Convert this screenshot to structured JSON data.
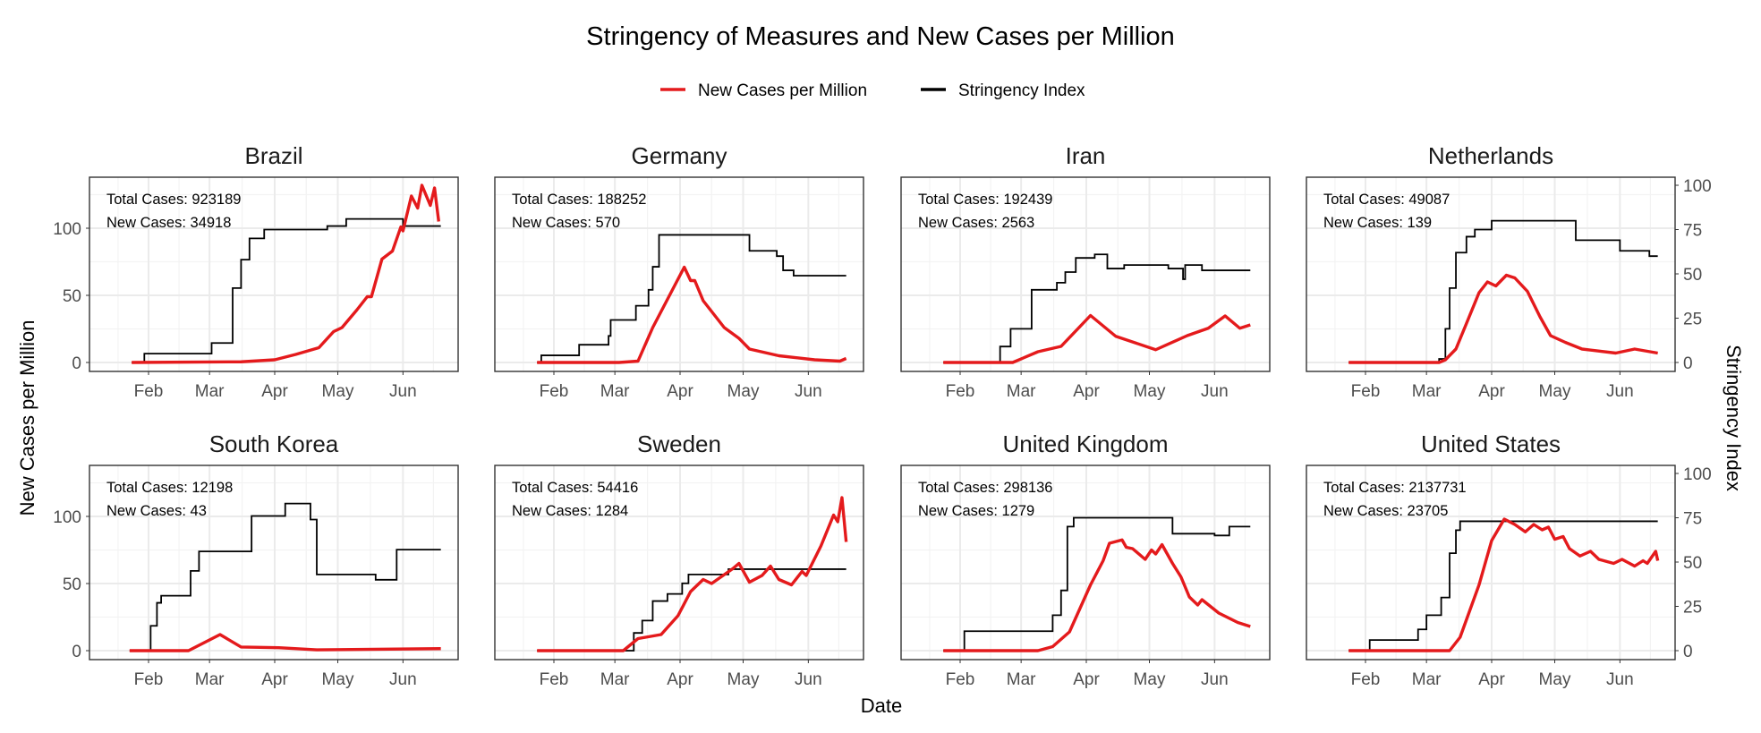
{
  "chart_data": {
    "type": "line",
    "title": "Stringency of Measures and New Cases per Million",
    "xlabel": "Date",
    "ylabel": "New Cases per Million",
    "y2label": "Stringency Index",
    "legend": {
      "position": "top",
      "entries": [
        {
          "name": "New Cases per Million",
          "color": "#e41a1c"
        },
        {
          "name": "Stringency Index",
          "color": "#000000"
        }
      ]
    },
    "x_ticks": [
      {
        "date": "02-01",
        "label": "Feb"
      },
      {
        "date": "03-01",
        "label": "Mar"
      },
      {
        "date": "04-01",
        "label": "Apr"
      },
      {
        "date": "05-01",
        "label": "May"
      },
      {
        "date": "06-01",
        "label": "Jun"
      }
    ],
    "y_ticks": [
      0,
      50,
      100
    ],
    "y2_ticks": [
      0,
      25,
      50,
      75,
      100
    ],
    "ylim": [
      -6.7,
      138
    ],
    "y2lim": [
      -5,
      104.5
    ],
    "xlim": [
      "01-05",
      "06-26"
    ],
    "grid": true,
    "total_prefix": "Total Cases: ",
    "new_prefix": "New Cases: ",
    "panels": [
      {
        "country": "Brazil",
        "total_cases": "923189",
        "new_cases": "34918",
        "stringency": [
          [
            "01-24",
            0
          ],
          [
            "01-30",
            5
          ],
          [
            "03-02",
            11
          ],
          [
            "03-12",
            42
          ],
          [
            "03-16",
            58
          ],
          [
            "03-20",
            70
          ],
          [
            "03-27",
            75
          ],
          [
            "04-26",
            77
          ],
          [
            "05-05",
            81
          ],
          [
            "06-01",
            77
          ],
          [
            "06-19",
            77
          ]
        ],
        "cases": [
          [
            "01-24",
            0
          ],
          [
            "03-16",
            0.5
          ],
          [
            "04-01",
            2
          ],
          [
            "04-11",
            6
          ],
          [
            "04-22",
            11
          ],
          [
            "04-29",
            23
          ],
          [
            "05-03",
            26
          ],
          [
            "05-10",
            39
          ],
          [
            "05-15",
            49
          ],
          [
            "05-17",
            49
          ],
          [
            "05-22",
            77
          ],
          [
            "05-27",
            83
          ],
          [
            "05-31",
            101
          ],
          [
            "06-01",
            98
          ],
          [
            "06-05",
            124
          ],
          [
            "06-08",
            115
          ],
          [
            "06-10",
            132
          ],
          [
            "06-14",
            117
          ],
          [
            "06-16",
            130
          ],
          [
            "06-18",
            105
          ]
        ]
      },
      {
        "country": "Germany",
        "total_cases": "188252",
        "new_cases": "570",
        "stringency": [
          [
            "01-24",
            0
          ],
          [
            "01-26",
            4
          ],
          [
            "02-13",
            10
          ],
          [
            "02-27",
            15
          ],
          [
            "02-28",
            24
          ],
          [
            "03-11",
            32
          ],
          [
            "03-17",
            41
          ],
          [
            "03-19",
            54
          ],
          [
            "03-22",
            72
          ],
          [
            "05-04",
            63
          ],
          [
            "05-17",
            60
          ],
          [
            "05-20",
            52
          ],
          [
            "05-25",
            49
          ],
          [
            "06-19",
            49
          ]
        ],
        "cases": [
          [
            "01-24",
            0
          ],
          [
            "03-03",
            0
          ],
          [
            "03-12",
            1
          ],
          [
            "03-19",
            26
          ],
          [
            "03-28",
            53
          ],
          [
            "04-03",
            71
          ],
          [
            "04-06",
            61
          ],
          [
            "04-08",
            61
          ],
          [
            "04-12",
            46
          ],
          [
            "04-22",
            26
          ],
          [
            "04-29",
            18
          ],
          [
            "05-04",
            10
          ],
          [
            "05-18",
            5
          ],
          [
            "06-04",
            2
          ],
          [
            "06-16",
            1
          ],
          [
            "06-19",
            3
          ]
        ]
      },
      {
        "country": "Iran",
        "total_cases": "192439",
        "new_cases": "2563",
        "stringency": [
          [
            "01-24",
            0
          ],
          [
            "02-20",
            9
          ],
          [
            "02-25",
            19
          ],
          [
            "03-06",
            41
          ],
          [
            "03-18",
            45
          ],
          [
            "03-22",
            51
          ],
          [
            "03-27",
            59
          ],
          [
            "04-05",
            61
          ],
          [
            "04-11",
            53
          ],
          [
            "04-19",
            55
          ],
          [
            "05-10",
            53
          ],
          [
            "05-17",
            47
          ],
          [
            "05-18",
            55
          ],
          [
            "05-26",
            52
          ],
          [
            "06-18",
            52
          ]
        ],
        "cases": [
          [
            "01-24",
            0
          ],
          [
            "02-26",
            0
          ],
          [
            "03-09",
            8
          ],
          [
            "03-20",
            12
          ],
          [
            "04-03",
            35
          ],
          [
            "04-15",
            19.5
          ],
          [
            "05-04",
            9.5
          ],
          [
            "05-19",
            20
          ],
          [
            "05-29",
            25.5
          ],
          [
            "06-06",
            34.7
          ],
          [
            "06-13",
            25.5
          ],
          [
            "06-18",
            28
          ]
        ]
      },
      {
        "country": "Netherlands",
        "total_cases": "49087",
        "new_cases": "139",
        "stringency": [
          [
            "01-24",
            0
          ],
          [
            "03-07",
            2
          ],
          [
            "03-10",
            19
          ],
          [
            "03-12",
            42
          ],
          [
            "03-15",
            62
          ],
          [
            "03-20",
            71
          ],
          [
            "03-24",
            75
          ],
          [
            "04-01",
            80
          ],
          [
            "05-11",
            69
          ],
          [
            "06-01",
            63
          ],
          [
            "06-15",
            60
          ],
          [
            "06-19",
            60
          ]
        ],
        "cases": [
          [
            "01-24",
            0
          ],
          [
            "03-07",
            0
          ],
          [
            "03-10",
            2
          ],
          [
            "03-15",
            10
          ],
          [
            "03-20",
            29
          ],
          [
            "03-26",
            52
          ],
          [
            "03-30",
            60
          ],
          [
            "04-03",
            57
          ],
          [
            "04-08",
            65
          ],
          [
            "04-12",
            63
          ],
          [
            "04-18",
            53
          ],
          [
            "04-24",
            34
          ],
          [
            "04-29",
            20
          ],
          [
            "05-06",
            15
          ],
          [
            "05-14",
            10
          ],
          [
            "05-30",
            7
          ],
          [
            "06-08",
            10
          ],
          [
            "06-19",
            7
          ]
        ]
      },
      {
        "country": "South Korea",
        "total_cases": "12198",
        "new_cases": "43",
        "stringency": [
          [
            "01-23",
            0
          ],
          [
            "02-02",
            14
          ],
          [
            "02-05",
            27
          ],
          [
            "02-07",
            31
          ],
          [
            "02-21",
            45
          ],
          [
            "02-25",
            56
          ],
          [
            "03-21",
            76
          ],
          [
            "04-06",
            83
          ],
          [
            "04-18",
            74
          ],
          [
            "04-21",
            43
          ],
          [
            "05-19",
            40
          ],
          [
            "05-29",
            57
          ],
          [
            "06-19",
            57
          ]
        ],
        "cases": [
          [
            "01-23",
            0
          ],
          [
            "02-20",
            0
          ],
          [
            "03-06",
            12
          ],
          [
            "03-16",
            2.7
          ],
          [
            "04-03",
            2.2
          ],
          [
            "04-21",
            0.6
          ],
          [
            "06-19",
            1.5
          ]
        ]
      },
      {
        "country": "Sweden",
        "total_cases": "54416",
        "new_cases": "1284",
        "stringency": [
          [
            "01-24",
            0
          ],
          [
            "03-10",
            10
          ],
          [
            "03-14",
            17
          ],
          [
            "03-19",
            28
          ],
          [
            "03-26",
            32
          ],
          [
            "04-02",
            38
          ],
          [
            "04-05",
            43
          ],
          [
            "04-24",
            46
          ],
          [
            "06-19",
            46
          ]
        ],
        "cases": [
          [
            "01-24",
            0
          ],
          [
            "03-05",
            0
          ],
          [
            "03-12",
            9
          ],
          [
            "03-23",
            12
          ],
          [
            "03-31",
            26
          ],
          [
            "04-06",
            44
          ],
          [
            "04-12",
            53
          ],
          [
            "04-16",
            50
          ],
          [
            "04-26",
            61
          ],
          [
            "04-29",
            65
          ],
          [
            "05-04",
            51
          ],
          [
            "05-10",
            56
          ],
          [
            "05-14",
            63
          ],
          [
            "05-18",
            53
          ],
          [
            "05-24",
            49
          ],
          [
            "05-29",
            59
          ],
          [
            "05-31",
            56
          ],
          [
            "06-07",
            78
          ],
          [
            "06-13",
            101
          ],
          [
            "06-15",
            96
          ],
          [
            "06-17",
            114
          ],
          [
            "06-19",
            81
          ]
        ]
      },
      {
        "country": "United Kingdom",
        "total_cases": "298136",
        "new_cases": "1279",
        "stringency": [
          [
            "01-24",
            0
          ],
          [
            "02-03",
            11
          ],
          [
            "03-16",
            20
          ],
          [
            "03-20",
            34
          ],
          [
            "03-23",
            70
          ],
          [
            "03-26",
            75
          ],
          [
            "05-12",
            66
          ],
          [
            "06-01",
            65
          ],
          [
            "06-08",
            70
          ],
          [
            "06-18",
            70
          ]
        ],
        "cases": [
          [
            "01-24",
            0
          ],
          [
            "03-09",
            0
          ],
          [
            "03-16",
            3
          ],
          [
            "03-24",
            14
          ],
          [
            "04-03",
            49
          ],
          [
            "04-09",
            67
          ],
          [
            "04-12",
            80
          ],
          [
            "04-18",
            82.5
          ],
          [
            "04-20",
            77
          ],
          [
            "04-23",
            76
          ],
          [
            "04-29",
            68
          ],
          [
            "05-02",
            75
          ],
          [
            "05-04",
            72
          ],
          [
            "05-07",
            79
          ],
          [
            "05-12",
            65
          ],
          [
            "05-16",
            55
          ],
          [
            "05-20",
            40
          ],
          [
            "05-24",
            34
          ],
          [
            "05-26",
            38
          ],
          [
            "06-03",
            28
          ],
          [
            "06-12",
            21
          ],
          [
            "06-18",
            18
          ]
        ]
      },
      {
        "country": "United States",
        "total_cases": "2137731",
        "new_cases": "23705",
        "stringency": [
          [
            "01-24",
            0
          ],
          [
            "02-03",
            6
          ],
          [
            "02-26",
            12
          ],
          [
            "03-01",
            20
          ],
          [
            "03-08",
            30
          ],
          [
            "03-12",
            55
          ],
          [
            "03-15",
            68
          ],
          [
            "03-17",
            73
          ],
          [
            "06-19",
            73
          ]
        ],
        "cases": [
          [
            "01-24",
            0
          ],
          [
            "03-12",
            0
          ],
          [
            "03-17",
            10
          ],
          [
            "03-26",
            49
          ],
          [
            "04-01",
            82
          ],
          [
            "04-07",
            98
          ],
          [
            "04-12",
            94
          ],
          [
            "04-17",
            88.5
          ],
          [
            "04-21",
            94
          ],
          [
            "04-25",
            90
          ],
          [
            "04-28",
            92
          ],
          [
            "05-01",
            83
          ],
          [
            "05-05",
            85
          ],
          [
            "05-08",
            76
          ],
          [
            "05-13",
            70.5
          ],
          [
            "05-18",
            74
          ],
          [
            "05-22",
            68
          ],
          [
            "05-29",
            65
          ],
          [
            "06-02",
            68
          ],
          [
            "06-08",
            63
          ],
          [
            "06-12",
            67
          ],
          [
            "06-14",
            65
          ],
          [
            "06-18",
            74
          ],
          [
            "06-19",
            67
          ]
        ]
      }
    ]
  }
}
